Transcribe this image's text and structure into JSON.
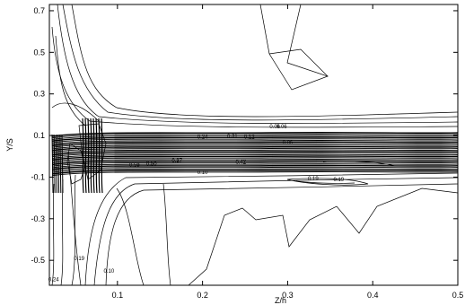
{
  "chart_data": {
    "type": "contour",
    "xlabel": "Z/h",
    "ylabel": "Y/S",
    "xlim": [
      0.02,
      0.5
    ],
    "ylim": [
      -0.62,
      0.73
    ],
    "x_ticks": [
      0.1,
      0.2,
      0.3,
      0.4,
      0.5
    ],
    "y_ticks": [
      0.7,
      0.5,
      0.3,
      0.1,
      -0.1,
      -0.3,
      -0.5
    ],
    "x_tick_labels": [
      "0.1",
      "0.2",
      "0.3",
      "0.4",
      "0.5"
    ],
    "y_tick_labels": [
      "0.7",
      "0.5",
      "0.3",
      "0.1",
      "-0.1",
      "-0.3",
      "-0.5"
    ],
    "contour_labels": [
      {
        "text": "0.06",
        "x": 0.285,
        "y": 0.135
      },
      {
        "text": "0.06",
        "x": 0.293,
        "y": 0.135
      },
      {
        "text": "0.24",
        "x": 0.2,
        "y": 0.085
      },
      {
        "text": "0.31",
        "x": 0.235,
        "y": 0.09
      },
      {
        "text": "0.12",
        "x": 0.255,
        "y": 0.085
      },
      {
        "text": "0.06",
        "x": 0.3,
        "y": 0.06
      },
      {
        "text": "0.59",
        "x": 0.12,
        "y": -0.05
      },
      {
        "text": "0.50",
        "x": 0.14,
        "y": -0.045
      },
      {
        "text": "0.37",
        "x": 0.17,
        "y": -0.03
      },
      {
        "text": "0.42",
        "x": 0.245,
        "y": -0.035
      },
      {
        "text": "0.10",
        "x": 0.2,
        "y": -0.085
      },
      {
        "text": "0.19",
        "x": 0.33,
        "y": -0.115
      },
      {
        "text": "0.19",
        "x": 0.36,
        "y": -0.12
      },
      {
        "text": "0.19",
        "x": 0.055,
        "y": -0.5
      },
      {
        "text": "0.10",
        "x": 0.09,
        "y": -0.56
      },
      {
        "text": "0.24",
        "x": 0.025,
        "y": -0.6
      }
    ]
  }
}
